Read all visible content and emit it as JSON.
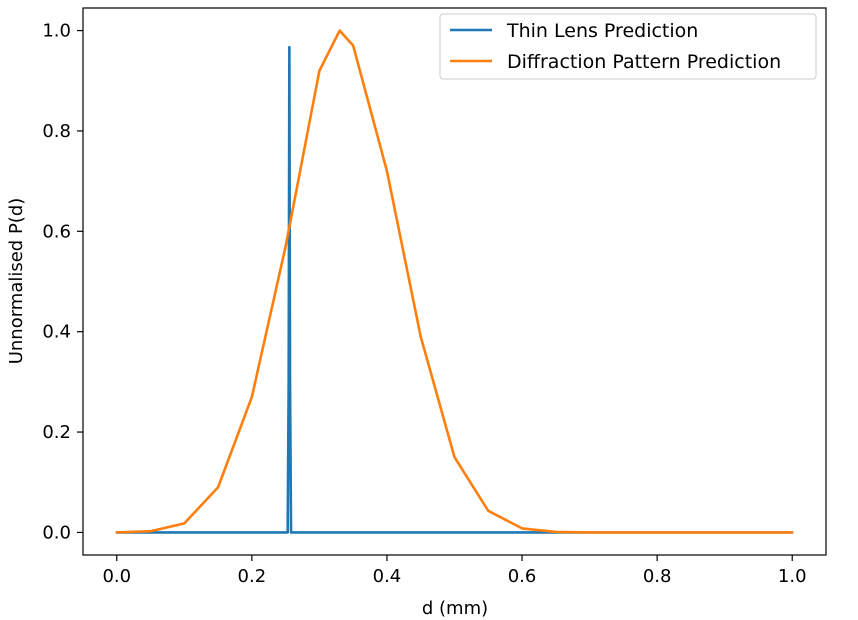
{
  "chart_data": {
    "type": "line",
    "title": "",
    "xlabel": "d (mm)",
    "ylabel": "Unnormalised P(d)",
    "xlim": [
      -0.05,
      1.05
    ],
    "ylim": [
      -0.045,
      1.045
    ],
    "x_ticks": [
      0.0,
      0.2,
      0.4,
      0.6,
      0.8,
      1.0
    ],
    "x_tick_labels": [
      "0.0",
      "0.2",
      "0.4",
      "0.6",
      "0.8",
      "1.0"
    ],
    "y_ticks": [
      0.0,
      0.2,
      0.4,
      0.6,
      0.8,
      1.0
    ],
    "y_tick_labels": [
      "0.0",
      "0.2",
      "0.4",
      "0.6",
      "0.8",
      "1.0"
    ],
    "grid": false,
    "legend_position": "top-right",
    "series": [
      {
        "name": "Thin Lens Prediction",
        "color": "#1f77b4",
        "x": [
          0.0,
          0.25,
          0.253,
          0.2545,
          0.2555,
          0.2565,
          0.258,
          0.261,
          0.3,
          0.6,
          1.0
        ],
        "y": [
          0.0,
          0.0,
          0.0,
          0.3,
          0.967,
          0.3,
          0.0,
          0.0,
          0.0,
          0.0,
          0.0
        ]
      },
      {
        "name": "Diffraction Pattern Prediction",
        "color": "#ff7f0e",
        "x": [
          0.0,
          0.05,
          0.1,
          0.15,
          0.2,
          0.25,
          0.3,
          0.33,
          0.35,
          0.4,
          0.45,
          0.5,
          0.55,
          0.6,
          0.65,
          0.7,
          0.8,
          0.9,
          1.0
        ],
        "y": [
          0.0,
          0.0024,
          0.018,
          0.09,
          0.27,
          0.57,
          0.92,
          1.0,
          0.97,
          0.72,
          0.39,
          0.15,
          0.043,
          0.008,
          0.001,
          0.0,
          0.0,
          0.0,
          0.0
        ]
      }
    ]
  }
}
